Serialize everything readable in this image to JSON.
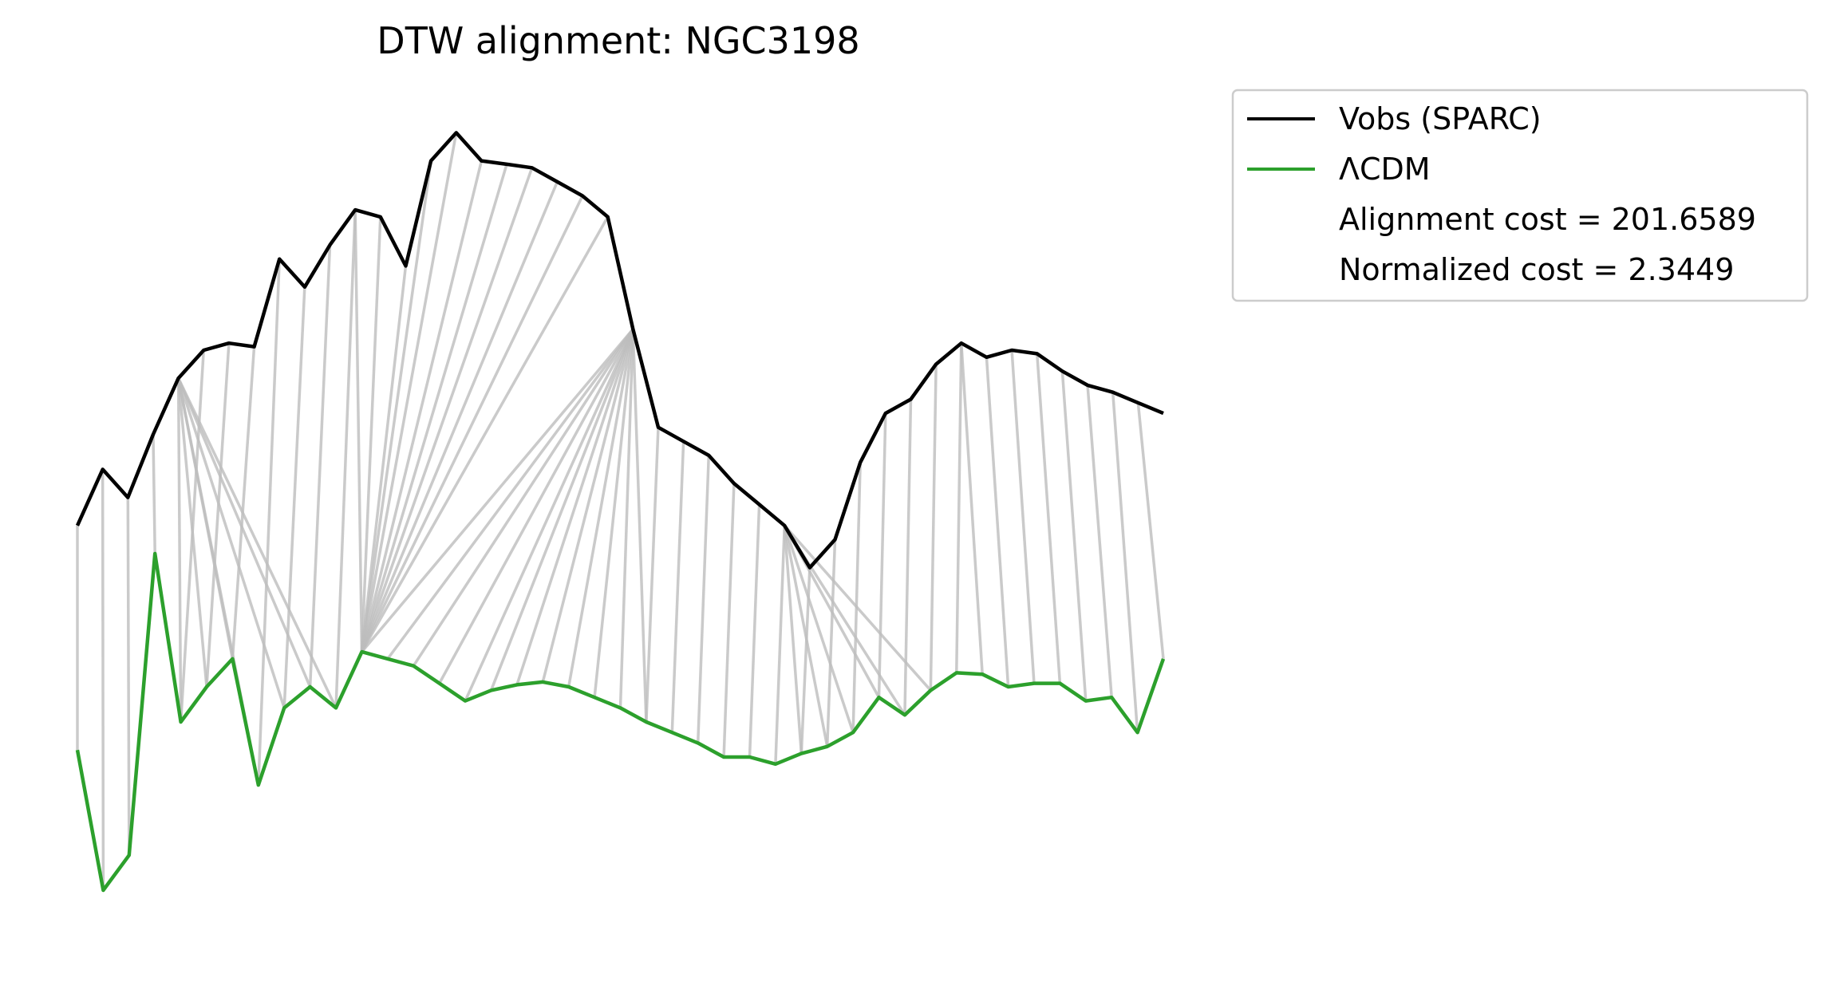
{
  "chart_data": {
    "type": "line",
    "title": "DTW alignment: NGC3198",
    "xlabel": "",
    "ylabel": "",
    "axes_visible": false,
    "grid": false,
    "legend_position": "top-right, outside plot",
    "series": [
      {
        "name": "Vobs (SPARC)",
        "color": "#000000",
        "values": [
          -0.6,
          0.2,
          -0.2,
          0.7,
          1.5,
          1.9,
          2.0,
          1.95,
          3.2,
          2.8,
          3.4,
          3.9,
          3.8,
          3.1,
          4.6,
          5.0,
          4.6,
          4.55,
          4.5,
          4.3,
          4.1,
          3.8,
          2.2,
          0.8,
          0.6,
          0.4,
          0.0,
          -0.3,
          -0.6,
          -1.2,
          -0.8,
          0.3,
          1.0,
          1.2,
          1.7,
          2.0,
          1.8,
          1.9,
          1.85,
          1.6,
          1.4,
          1.3,
          1.15,
          1.0
        ]
      },
      {
        "name": "ΛCDM",
        "color": "#2ca02c",
        "values": [
          -3.8,
          -5.8,
          -5.3,
          -1.0,
          -3.4,
          -2.9,
          -2.5,
          -4.3,
          -3.2,
          -2.9,
          -3.2,
          -2.4,
          -2.5,
          -2.6,
          -2.85,
          -3.1,
          -2.95,
          -2.87,
          -2.83,
          -2.9,
          -3.05,
          -3.2,
          -3.4,
          -3.55,
          -3.7,
          -3.9,
          -3.9,
          -4.0,
          -3.85,
          -3.75,
          -3.55,
          -3.05,
          -3.3,
          -2.95,
          -2.7,
          -2.72,
          -2.9,
          -2.85,
          -2.85,
          -3.1,
          -3.05,
          -3.55,
          -2.5
        ]
      }
    ],
    "alignment": {
      "color": "#bdbdbd",
      "pairs": [
        [
          0,
          0
        ],
        [
          1,
          1
        ],
        [
          2,
          2
        ],
        [
          3,
          3
        ],
        [
          4,
          4
        ],
        [
          4,
          5
        ],
        [
          4,
          6
        ],
        [
          4,
          7
        ],
        [
          4,
          8
        ],
        [
          4,
          9
        ],
        [
          4,
          10
        ],
        [
          5,
          4
        ],
        [
          6,
          5
        ],
        [
          7,
          6
        ],
        [
          8,
          7
        ],
        [
          9,
          8
        ],
        [
          10,
          9
        ],
        [
          11,
          10
        ],
        [
          11,
          11
        ],
        [
          12,
          11
        ],
        [
          13,
          11
        ],
        [
          14,
          11
        ],
        [
          15,
          11
        ],
        [
          16,
          11
        ],
        [
          17,
          11
        ],
        [
          18,
          11
        ],
        [
          19,
          11
        ],
        [
          20,
          11
        ],
        [
          21,
          11
        ],
        [
          22,
          11
        ],
        [
          22,
          12
        ],
        [
          22,
          13
        ],
        [
          22,
          14
        ],
        [
          22,
          15
        ],
        [
          22,
          16
        ],
        [
          22,
          17
        ],
        [
          22,
          18
        ],
        [
          22,
          19
        ],
        [
          22,
          20
        ],
        [
          22,
          21
        ],
        [
          22,
          22
        ],
        [
          23,
          22
        ],
        [
          24,
          23
        ],
        [
          25,
          24
        ],
        [
          26,
          25
        ],
        [
          27,
          26
        ],
        [
          28,
          27
        ],
        [
          28,
          28
        ],
        [
          28,
          29
        ],
        [
          28,
          30
        ],
        [
          28,
          31
        ],
        [
          28,
          32
        ],
        [
          28,
          33
        ],
        [
          29,
          28
        ],
        [
          30,
          29
        ],
        [
          31,
          30
        ],
        [
          32,
          31
        ],
        [
          33,
          32
        ],
        [
          34,
          33
        ],
        [
          35,
          34
        ],
        [
          35,
          35
        ],
        [
          36,
          36
        ],
        [
          37,
          37
        ],
        [
          38,
          38
        ],
        [
          39,
          39
        ],
        [
          40,
          40
        ],
        [
          41,
          41
        ],
        [
          42,
          42
        ]
      ]
    },
    "annotations": [
      "Alignment cost = 201.6589",
      "Normalized cost = 2.3449"
    ]
  }
}
